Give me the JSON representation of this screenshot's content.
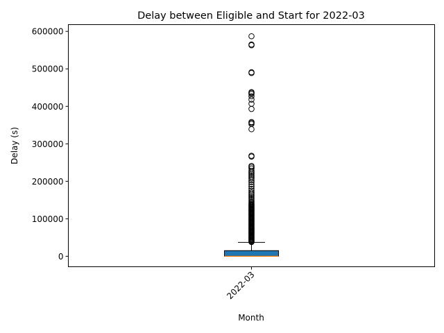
{
  "chart_data": {
    "type": "box",
    "title": "Delay between Eligible and Start for 2022-03",
    "xlabel": "Month",
    "ylabel": "Delay (s)",
    "categories": [
      "2022-03"
    ],
    "ylim": [
      -28000,
      618000
    ],
    "yticks": [
      0,
      100000,
      200000,
      300000,
      400000,
      500000,
      600000
    ],
    "ytick_labels": [
      "0",
      "100000",
      "200000",
      "300000",
      "400000",
      "500000",
      "600000"
    ],
    "grid": false,
    "boxes": [
      {
        "category": "2022-03",
        "q1": 0,
        "median": 0,
        "q3": 15000,
        "whisker_low": 0,
        "whisker_high": 37000,
        "fill_color": "#1f77b4",
        "median_color": "#ff7f0e",
        "outliers": [
          38000,
          40000,
          42000,
          44000,
          46000,
          48000,
          50000,
          52000,
          54000,
          56000,
          58000,
          60000,
          62000,
          64000,
          66000,
          68000,
          70000,
          72000,
          74000,
          76000,
          78000,
          80000,
          82000,
          84000,
          86000,
          88000,
          90000,
          92000,
          94000,
          96000,
          98000,
          100000,
          102000,
          104000,
          106000,
          108000,
          110000,
          112000,
          114000,
          116000,
          118000,
          120000,
          122000,
          124000,
          126000,
          128000,
          130000,
          132000,
          134000,
          136000,
          138000,
          140000,
          143000,
          146000,
          150000,
          154000,
          158000,
          162000,
          166000,
          170000,
          175000,
          180000,
          186000,
          192000,
          198000,
          203000,
          208000,
          212000,
          216000,
          220000,
          224000,
          228000,
          234000,
          238000,
          241000,
          266000,
          268000,
          339000,
          353000,
          356000,
          358000,
          393000,
          407000,
          418000,
          427000,
          433000,
          436000,
          438000,
          489000,
          491000,
          563000,
          565000,
          587000
        ]
      }
    ]
  }
}
